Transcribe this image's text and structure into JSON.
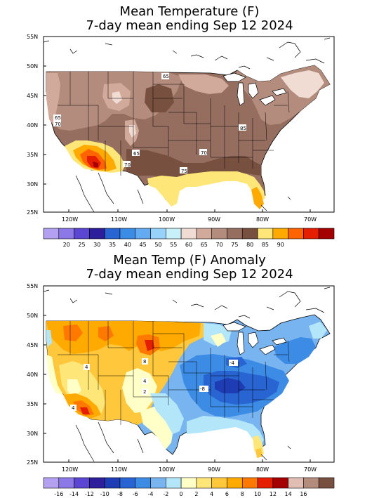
{
  "panels": [
    {
      "title_line1": "Mean Temperature (F)",
      "title_line2": "7-day mean ending Sep 12 2024",
      "lat_labels": [
        "55N",
        "50N",
        "45N",
        "40N",
        "35N",
        "30N",
        "25N"
      ],
      "lon_labels": [
        "120W",
        "110W",
        "100W",
        "90W",
        "80W",
        "70W"
      ],
      "contour_labels": [
        "65",
        "65",
        "70",
        "85",
        "65",
        "70",
        "70",
        "75"
      ],
      "colorbar": {
        "colors": [
          "#b4a0f0",
          "#8c78e6",
          "#5a46d2",
          "#2d1e9b",
          "#2864d2",
          "#3c8ce6",
          "#64aaf0",
          "#96d2fa",
          "#c8f0fa",
          "#f0dcd2",
          "#d2aa9b",
          "#b48c7d",
          "#966e5f",
          "#785040",
          "#ffe678",
          "#ffaa00",
          "#ff6400",
          "#e61e00",
          "#a50000"
        ],
        "labels": [
          "20",
          "25",
          "30",
          "35",
          "40",
          "45",
          "50",
          "55",
          "60",
          "65",
          "70",
          "75",
          "80",
          "85",
          "90"
        ]
      }
    },
    {
      "title_line1": "Mean Temp (F) Anomaly",
      "title_line2": "7-day mean ending Sep 12 2024",
      "lat_labels": [
        "55N",
        "50N",
        "45N",
        "40N",
        "35N",
        "30N",
        "25N"
      ],
      "lon_labels": [
        "120W",
        "110W",
        "100W",
        "90W",
        "80W",
        "70W"
      ],
      "contour_labels": [
        "4",
        "8",
        "4",
        "2",
        "4",
        "-4",
        "-8"
      ],
      "colorbar": {
        "colors": [
          "#b4a0f0",
          "#8c78e6",
          "#5a46d2",
          "#2d1e9b",
          "#1e3cb4",
          "#2864d2",
          "#3c8ce6",
          "#78b4f0",
          "#b4e6fa",
          "#ffffc8",
          "#ffe678",
          "#ffc83c",
          "#ffaa00",
          "#ff7800",
          "#e61e00",
          "#a50000",
          "#e1beb4",
          "#b48c7d",
          "#785040"
        ],
        "labels": [
          "-16",
          "-14",
          "-12",
          "-10",
          "-8",
          "-6",
          "-4",
          "-2",
          "0",
          "2",
          "4",
          "6",
          "8",
          "10",
          "12",
          "14",
          "16"
        ]
      }
    }
  ]
}
